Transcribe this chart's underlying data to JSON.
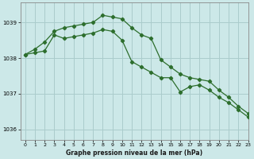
{
  "title": "Graphe pression niveau de la mer (hPa)",
  "background_color": "#cce8e8",
  "grid_color": "#aacccc",
  "line_color": "#2d6e2d",
  "xlim": [
    -0.5,
    23
  ],
  "ylim": [
    1035.7,
    1039.55
  ],
  "yticks": [
    1036,
    1037,
    1038,
    1039
  ],
  "xticks": [
    0,
    1,
    2,
    3,
    4,
    5,
    6,
    7,
    8,
    9,
    10,
    11,
    12,
    13,
    14,
    15,
    16,
    17,
    18,
    19,
    20,
    21,
    22,
    23
  ],
  "series1_x": [
    0,
    1,
    2,
    3,
    4,
    5,
    6,
    7,
    8,
    9,
    10,
    11,
    12,
    13,
    14,
    15,
    16,
    17,
    18,
    19,
    20,
    21,
    22,
    23
  ],
  "series1_y": [
    1038.1,
    1038.25,
    1038.45,
    1038.75,
    1038.85,
    1038.9,
    1038.95,
    1039.0,
    1039.2,
    1039.15,
    1039.1,
    1038.85,
    1038.65,
    1038.55,
    1037.95,
    1037.75,
    1037.55,
    1037.45,
    1037.4,
    1037.35,
    1037.1,
    1036.9,
    1036.65,
    1036.45
  ],
  "series2_x": [
    0,
    1,
    2,
    3,
    4,
    5,
    6,
    7,
    8,
    9,
    10,
    11,
    12,
    13,
    14,
    15,
    16,
    17,
    18,
    19,
    20,
    21,
    22,
    23
  ],
  "series2_y": [
    1038.1,
    1038.15,
    1038.2,
    1038.65,
    1038.55,
    1038.6,
    1038.65,
    1038.7,
    1038.8,
    1038.75,
    1038.5,
    1037.9,
    1037.75,
    1037.6,
    1037.45,
    1037.45,
    1037.05,
    1037.2,
    1037.25,
    1037.1,
    1036.9,
    1036.75,
    1036.55,
    1036.35
  ]
}
